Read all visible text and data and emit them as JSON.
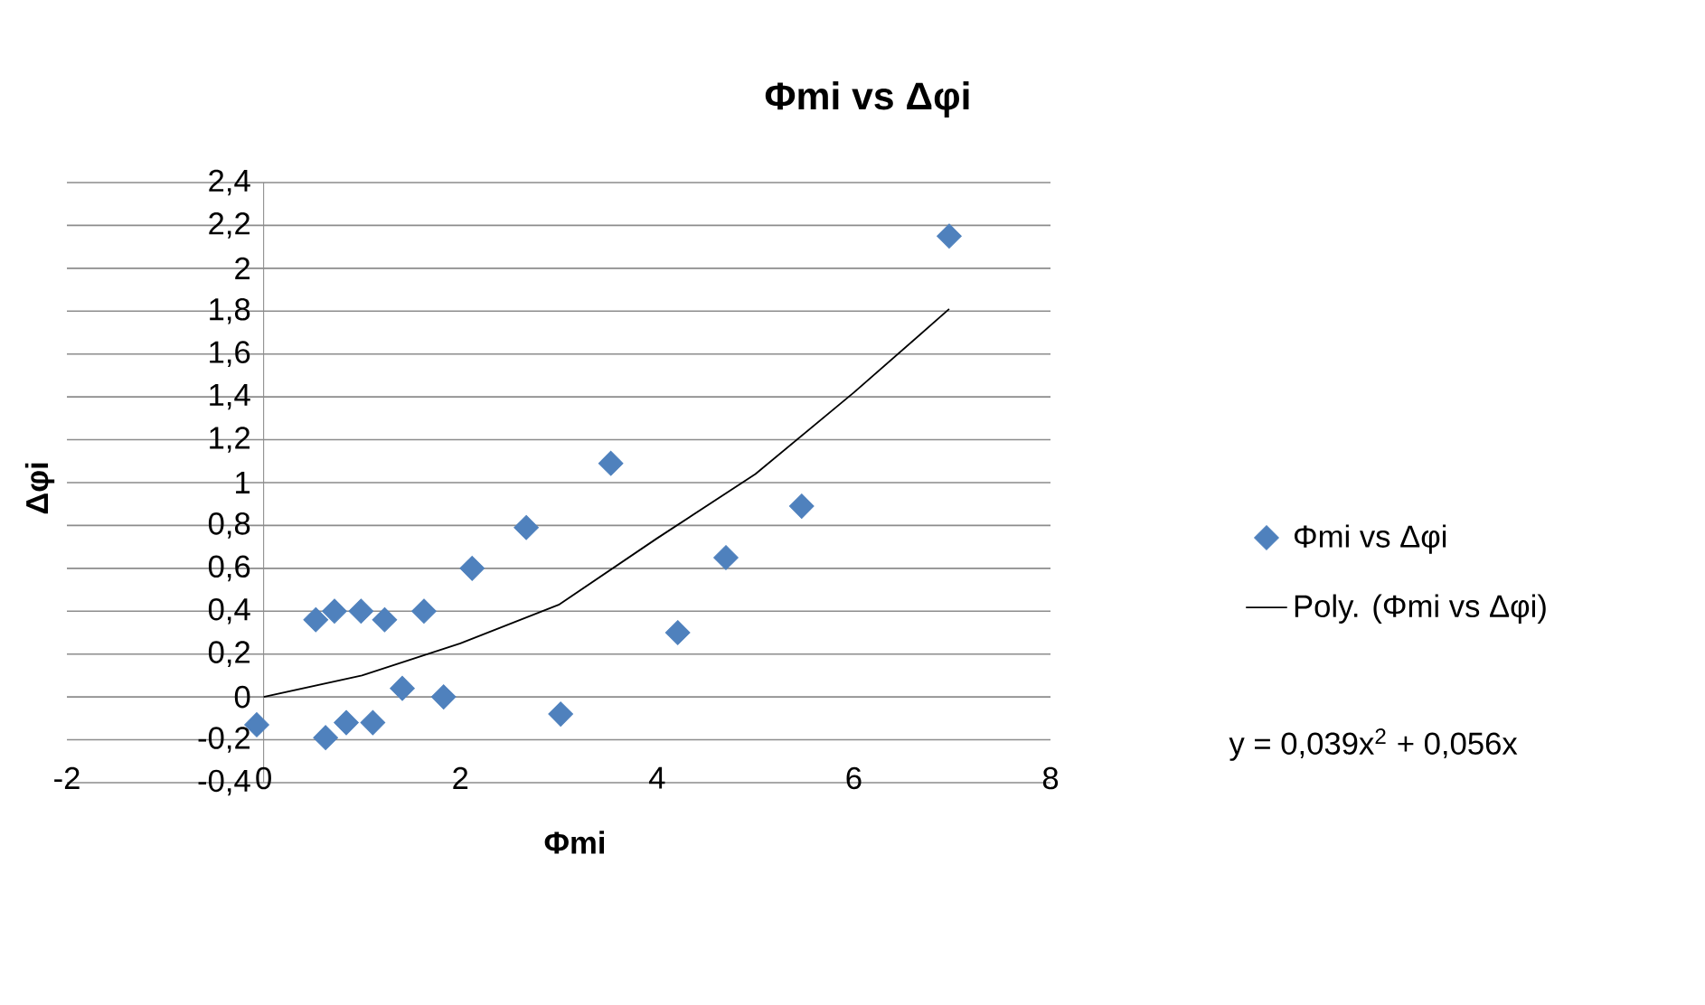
{
  "chart_data": {
    "type": "scatter",
    "title": "Φmi vs Δφi",
    "xlabel": "Φmi",
    "ylabel": "Δφi",
    "series": [
      {
        "name": "Φmi vs Δφi",
        "color": "#4f81bd",
        "marker": "diamond",
        "x": [
          -0.07,
          0.53,
          0.72,
          0.63,
          0.84,
          0.99,
          1.11,
          1.23,
          1.41,
          1.63,
          1.83,
          2.12,
          2.67,
          3.02,
          3.53,
          4.21,
          4.7,
          5.47,
          6.97
        ],
        "values": [
          -0.13,
          0.36,
          0.4,
          -0.19,
          -0.12,
          0.4,
          -0.12,
          0.36,
          0.04,
          0.4,
          0.0,
          0.6,
          0.79,
          -0.08,
          1.09,
          0.3,
          0.65,
          0.89,
          2.15
        ]
      },
      {
        "name": "Poly. (Φmi vs Δφi)",
        "type": "line",
        "color": "#000000",
        "marker": "none",
        "x": [
          0,
          1,
          2,
          3,
          4,
          5,
          6,
          6.97
        ],
        "values": [
          0,
          0.1,
          0.25,
          0.43,
          0.74,
          1.04,
          1.42,
          1.81
        ]
      }
    ],
    "xlim": [
      -2,
      8
    ],
    "ylim": [
      -0.4,
      2.4
    ],
    "xticks": [
      -2,
      0,
      2,
      4,
      6,
      8
    ],
    "yticks": [
      {
        "value": -0.4,
        "label": "-0,4"
      },
      {
        "value": -0.2,
        "label": "-0,2"
      },
      0,
      {
        "value": 0.2,
        "label": "0,2"
      },
      {
        "value": 0.4,
        "label": "0,4"
      },
      {
        "value": 0.6,
        "label": "0,6"
      },
      {
        "value": 0.8,
        "label": "0,8"
      },
      1,
      {
        "value": 1.2,
        "label": "1,2"
      },
      {
        "value": 1.4,
        "label": "1,4"
      },
      {
        "value": 1.6,
        "label": "1,6"
      },
      {
        "value": 1.8,
        "label": "1,8"
      },
      2,
      {
        "value": 2.2,
        "label": "2,2"
      },
      {
        "value": 2.4,
        "label": "2,4"
      }
    ],
    "grid": "y",
    "legend": "right",
    "annotations": [
      "y = 0,039x$^{2}$ + 0,056x"
    ]
  }
}
